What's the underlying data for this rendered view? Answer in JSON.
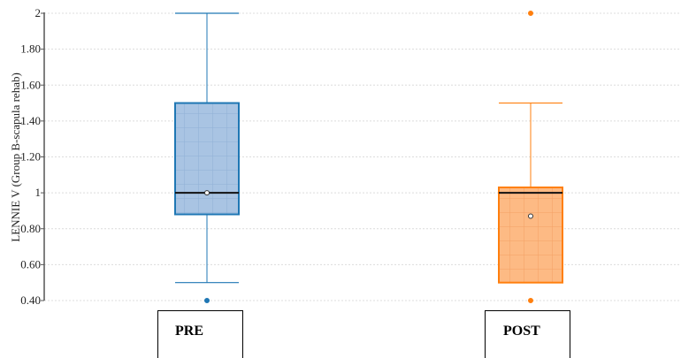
{
  "chart_data": {
    "type": "box",
    "ylabel": "LENNIE V (Group B-scapula rehab)",
    "ylim": [
      0.4,
      2.0
    ],
    "yticks": [
      {
        "value": 0.4,
        "label": "0.40"
      },
      {
        "value": 0.6,
        "label": "0.60"
      },
      {
        "value": 0.8,
        "label": "0.80"
      },
      {
        "value": 1.0,
        "label": "1"
      },
      {
        "value": 1.2,
        "label": "1.20"
      },
      {
        "value": 1.4,
        "label": "1.40"
      },
      {
        "value": 1.6,
        "label": "1.60"
      },
      {
        "value": 1.8,
        "label": "1.80"
      },
      {
        "value": 2.0,
        "label": "2"
      }
    ],
    "grid": true,
    "categories": [
      "PRE",
      "POST"
    ],
    "boxes": [
      {
        "category": "PRE",
        "color": "#1f77b4",
        "fill": "#a9c4e3",
        "whisker_low": 0.5,
        "q1": 0.88,
        "median": 1.0,
        "q3": 1.5,
        "whisker_high": 2.0,
        "mean": 1.0,
        "outliers": [
          0.4
        ]
      },
      {
        "category": "POST",
        "color": "#ff7f0e",
        "fill": "#fdba84",
        "whisker_low": 0.5,
        "q1": 0.5,
        "median": 1.0,
        "q3": 1.03,
        "whisker_high": 1.5,
        "mean": 0.87,
        "outliers": [
          0.4,
          2.0
        ]
      }
    ]
  }
}
